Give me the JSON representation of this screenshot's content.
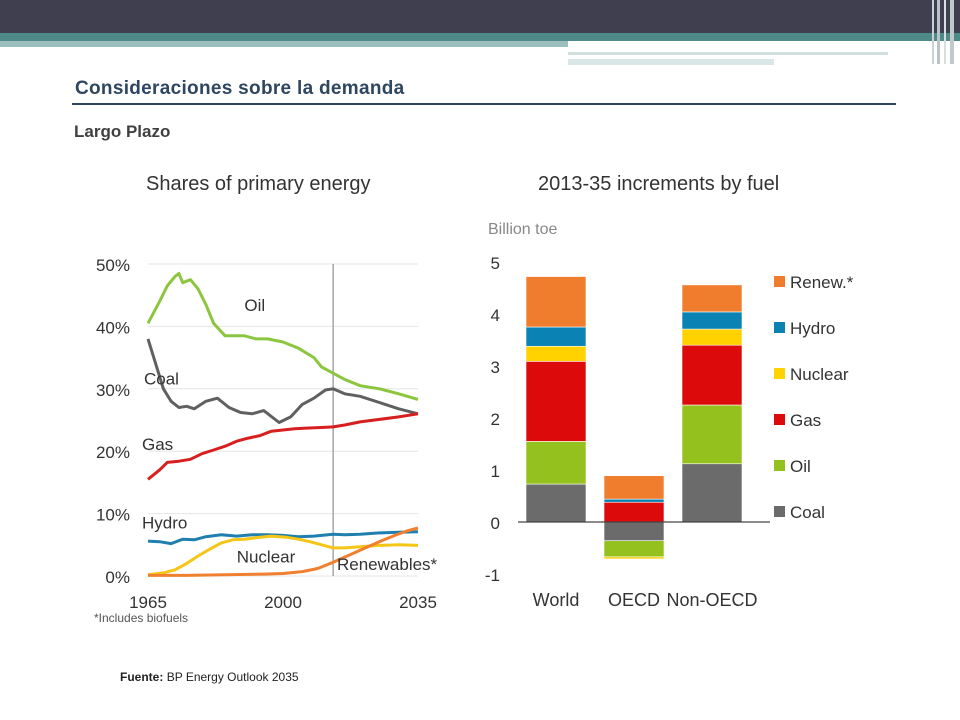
{
  "header": {
    "title": "Consideraciones sobre la demanda",
    "subtitle": "Largo Plazo"
  },
  "source": {
    "label": "Fuente:",
    "text": "BP Energy Outlook 2035"
  },
  "colors": {
    "oil": "#8cc63f",
    "coal": "#606060",
    "gas": "#d71f1f",
    "hydro": "#1f7fae",
    "nuclear": "#f5c518",
    "renew": "#f08030",
    "coal_bar": "#6b6b6b",
    "oil_bar": "#95c11f",
    "nuclear_bar": "#ffd200",
    "gas_bar": "#dc0a0a",
    "hydro_bar": "#0a82b4",
    "renew_bar": "#f07d2d",
    "header_bar": "#3f3f4f",
    "accent_band": "#4e8a88",
    "title_text": "#2e4660"
  },
  "chart_data": [
    {
      "type": "line",
      "title": "Shares of primary energy",
      "xlim": [
        1965,
        2035
      ],
      "ylim": [
        0,
        50
      ],
      "x_ticks": [
        "1965",
        "2000",
        "2035"
      ],
      "y_ticks": [
        "0%",
        "10%",
        "20%",
        "30%",
        "40%",
        "50%"
      ],
      "projection_start": 2013,
      "footnote": "*Includes biofuels",
      "series": [
        {
          "name": "Oil",
          "color": "#8cc63f",
          "points": [
            [
              1965,
              40.5
            ],
            [
              1968,
              44
            ],
            [
              1970,
              46.5
            ],
            [
              1972,
              48
            ],
            [
              1973,
              48.5
            ],
            [
              1974,
              47
            ],
            [
              1976,
              47.5
            ],
            [
              1978,
              46
            ],
            [
              1980,
              43.5
            ],
            [
              1982,
              40.5
            ],
            [
              1985,
              38.5
            ],
            [
              1988,
              38.5
            ],
            [
              1990,
              38.5
            ],
            [
              1993,
              38
            ],
            [
              1996,
              38
            ],
            [
              2000,
              37.5
            ],
            [
              2004,
              36.5
            ],
            [
              2008,
              35
            ],
            [
              2010,
              33.5
            ],
            [
              2013,
              32.5
            ],
            [
              2016,
              31.5
            ],
            [
              2020,
              30.5
            ],
            [
              2025,
              30
            ],
            [
              2030,
              29.2
            ],
            [
              2035,
              28.3
            ]
          ]
        },
        {
          "name": "Coal",
          "color": "#606060",
          "points": [
            [
              1965,
              38
            ],
            [
              1967,
              34
            ],
            [
              1969,
              30
            ],
            [
              1971,
              28
            ],
            [
              1973,
              27
            ],
            [
              1975,
              27.2
            ],
            [
              1977,
              26.8
            ],
            [
              1980,
              28
            ],
            [
              1983,
              28.5
            ],
            [
              1986,
              27
            ],
            [
              1989,
              26.2
            ],
            [
              1992,
              26
            ],
            [
              1995,
              26.5
            ],
            [
              1999,
              24.6
            ],
            [
              2002,
              25.5
            ],
            [
              2005,
              27.5
            ],
            [
              2008,
              28.5
            ],
            [
              2011,
              29.8
            ],
            [
              2013,
              30
            ],
            [
              2016,
              29.2
            ],
            [
              2020,
              28.8
            ],
            [
              2025,
              27.8
            ],
            [
              2030,
              26.8
            ],
            [
              2035,
              26.0
            ]
          ]
        },
        {
          "name": "Gas",
          "color": "#d71f1f",
          "points": [
            [
              1965,
              15.5
            ],
            [
              1968,
              17
            ],
            [
              1970,
              18.2
            ],
            [
              1973,
              18.4
            ],
            [
              1976,
              18.7
            ],
            [
              1979,
              19.6
            ],
            [
              1982,
              20.2
            ],
            [
              1985,
              20.8
            ],
            [
              1988,
              21.6
            ],
            [
              1991,
              22.1
            ],
            [
              1994,
              22.5
            ],
            [
              1997,
              23.2
            ],
            [
              2000,
              23.4
            ],
            [
              2003,
              23.6
            ],
            [
              2006,
              23.7
            ],
            [
              2010,
              23.8
            ],
            [
              2013,
              23.9
            ],
            [
              2016,
              24.2
            ],
            [
              2020,
              24.7
            ],
            [
              2025,
              25.1
            ],
            [
              2030,
              25.5
            ],
            [
              2035,
              26.0
            ]
          ]
        },
        {
          "name": "Hydro",
          "color": "#1f7fae",
          "points": [
            [
              1965,
              5.6
            ],
            [
              1968,
              5.5
            ],
            [
              1971,
              5.2
            ],
            [
              1974,
              5.9
            ],
            [
              1977,
              5.8
            ],
            [
              1980,
              6.3
            ],
            [
              1984,
              6.6
            ],
            [
              1988,
              6.4
            ],
            [
              1992,
              6.6
            ],
            [
              1996,
              6.6
            ],
            [
              2000,
              6.5
            ],
            [
              2004,
              6.3
            ],
            [
              2008,
              6.4
            ],
            [
              2010,
              6.5
            ],
            [
              2013,
              6.7
            ],
            [
              2016,
              6.6
            ],
            [
              2020,
              6.7
            ],
            [
              2025,
              6.9
            ],
            [
              2030,
              7.0
            ],
            [
              2035,
              7.1
            ]
          ]
        },
        {
          "name": "Nuclear",
          "color": "#f5c518",
          "points": [
            [
              1965,
              0.2
            ],
            [
              1969,
              0.5
            ],
            [
              1972,
              1.0
            ],
            [
              1975,
              2.0
            ],
            [
              1978,
              3.2
            ],
            [
              1981,
              4.3
            ],
            [
              1984,
              5.3
            ],
            [
              1987,
              5.8
            ],
            [
              1990,
              5.9
            ],
            [
              1994,
              6.2
            ],
            [
              1997,
              6.4
            ],
            [
              2001,
              6.2
            ],
            [
              2004,
              5.9
            ],
            [
              2007,
              5.5
            ],
            [
              2010,
              5.0
            ],
            [
              2013,
              4.5
            ],
            [
              2016,
              4.5
            ],
            [
              2020,
              4.7
            ],
            [
              2025,
              4.9
            ],
            [
              2030,
              5.0
            ],
            [
              2035,
              4.9
            ]
          ]
        },
        {
          "name": "Renewables*",
          "color": "#f08030",
          "points": [
            [
              1965,
              0.1
            ],
            [
              1975,
              0.1
            ],
            [
              1985,
              0.2
            ],
            [
              1995,
              0.3
            ],
            [
              2000,
              0.4
            ],
            [
              2005,
              0.7
            ],
            [
              2009,
              1.2
            ],
            [
              2013,
              2.2
            ],
            [
              2017,
              3.3
            ],
            [
              2021,
              4.4
            ],
            [
              2025,
              5.5
            ],
            [
              2029,
              6.5
            ],
            [
              2032,
              7.2
            ],
            [
              2035,
              7.7
            ]
          ]
        }
      ]
    },
    {
      "type": "bar",
      "stacked": true,
      "title": "2013-35 increments by fuel",
      "ylabel": "Billion toe",
      "ylim": [
        -1,
        5
      ],
      "y_ticks": [
        "-1",
        "0",
        "1",
        "2",
        "3",
        "4",
        "5"
      ],
      "categories": [
        "World",
        "OECD",
        "Non-OECD"
      ],
      "legend_position": "right",
      "series": [
        {
          "name": "Coal",
          "color": "#6b6b6b",
          "values": [
            0.73,
            -0.36,
            1.12
          ]
        },
        {
          "name": "Oil",
          "color": "#95c11f",
          "values": [
            0.82,
            -0.31,
            1.13
          ]
        },
        {
          "name": "Gas",
          "color": "#dc0a0a",
          "values": [
            1.54,
            0.38,
            1.15
          ]
        },
        {
          "name": "Nuclear",
          "color": "#ffd200",
          "values": [
            0.29,
            -0.04,
            0.31
          ]
        },
        {
          "name": "Hydro",
          "color": "#0a82b4",
          "values": [
            0.37,
            0.06,
            0.33
          ]
        },
        {
          "name": "Renew.*",
          "color": "#f07d2d",
          "values": [
            0.97,
            0.45,
            0.52
          ]
        }
      ]
    }
  ]
}
